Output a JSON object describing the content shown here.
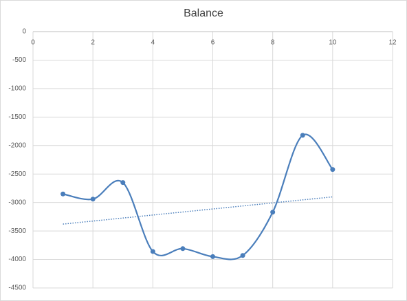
{
  "chart_data": {
    "type": "scatter",
    "title": "Balance",
    "x": [
      1,
      2,
      3,
      4,
      5,
      6,
      7,
      8,
      9,
      10
    ],
    "series": [
      {
        "color": "#4a7ebb",
        "values": [
          -2850,
          -2940,
          -2650,
          -3860,
          -3810,
          -3950,
          -3930,
          -3170,
          -1820,
          -2420
        ]
      }
    ],
    "smooth": true,
    "trendline": "linear",
    "trendline_color": "#4a7ebb",
    "xlim": [
      0,
      12
    ],
    "xticks": [
      0,
      2,
      4,
      6,
      8,
      10,
      12
    ],
    "ylim": [
      -4500,
      0
    ],
    "yticks": [
      0,
      -500,
      -1000,
      -1500,
      -2000,
      -2500,
      -3000,
      -3500,
      -4000,
      -4500
    ],
    "grid": true
  }
}
